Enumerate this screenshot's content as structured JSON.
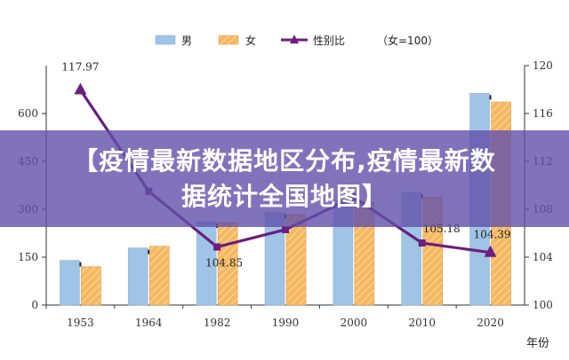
{
  "chart_data": {
    "type": "bar",
    "categories": [
      "1953",
      "1964",
      "1982",
      "1990",
      "2000",
      "2010",
      "2020"
    ],
    "series": [
      {
        "name": "男",
        "type": "bar",
        "axis": "left",
        "values": [
          140,
          179,
          261,
          290,
          327,
          353,
          663
        ]
      },
      {
        "name": "女",
        "type": "bar",
        "axis": "left",
        "values": [
          120,
          184,
          258,
          284,
          322,
          338,
          636
        ]
      },
      {
        "name": "性别比",
        "type": "line",
        "axis": "right",
        "values": [
          117.97,
          109.5,
          104.85,
          106.3,
          109.0,
          105.18,
          104.39
        ]
      }
    ],
    "data_labels": [
      "117.97",
      "104.85",
      "105.18",
      "104.39"
    ],
    "legend_note": "（女=100）",
    "y_left": {
      "ticks": [
        "0",
        "150",
        "300",
        "450",
        "600"
      ],
      "lim": [
        0,
        750
      ]
    },
    "y_right": {
      "ticks": [
        "100",
        "104",
        "108",
        "112",
        "116",
        "120"
      ],
      "lim": [
        100,
        120
      ]
    },
    "xlabel": "年份",
    "colors": {
      "male": "#9fc4e6",
      "female": "#f4b35e",
      "ratio": "#6b1e7f"
    },
    "legend_position": "top",
    "grid": false
  },
  "overlay": {
    "line1": "【疫情最新数据地区分布,疫情最新数",
    "line2": "据统计全国地图】"
  }
}
